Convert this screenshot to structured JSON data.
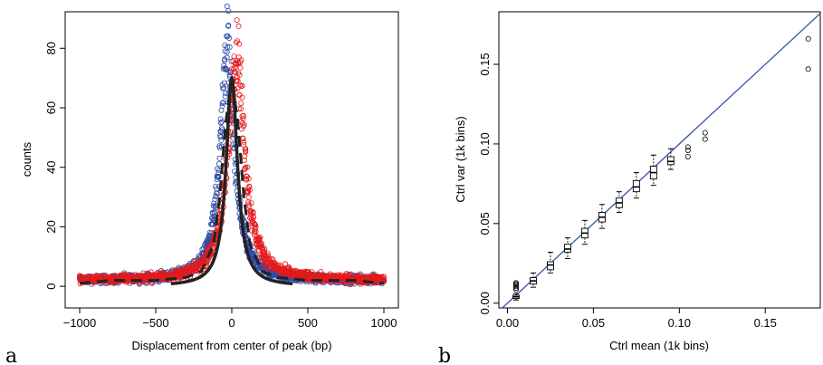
{
  "colors": {
    "blue": "#2b4aa8",
    "red": "#e41a1c",
    "black": "#222222",
    "line": "#3355aa"
  },
  "chart_data": [
    {
      "type": "scatter",
      "panel_label": "a",
      "xlabel": "Displacement from center of peak (bp)",
      "ylabel": "counts",
      "xlim": [
        -1000,
        1000
      ],
      "ylim": [
        -3,
        88
      ],
      "xticks": [
        {
          "v": -1000,
          "label": "−1000"
        },
        {
          "v": -500,
          "label": "−500"
        },
        {
          "v": 0,
          "label": "0"
        },
        {
          "v": 500,
          "label": "500"
        },
        {
          "v": 1000,
          "label": "1000"
        }
      ],
      "yticks": [
        0,
        20,
        40,
        60,
        80
      ],
      "grid": false,
      "series": [
        {
          "color": "blue",
          "marker": "open-circle",
          "center": -30,
          "peak": 80,
          "halfwidth": 55,
          "baseline": 2
        },
        {
          "color": "red",
          "marker": "open-circle",
          "center": 30,
          "peak": 78,
          "halfwidth": 65,
          "baseline": 2
        }
      ],
      "fits": [
        {
          "style": "solid",
          "color": "black",
          "center": 0,
          "peak": 70,
          "halfwidth": 45,
          "baseline": 0
        },
        {
          "style": "dashed",
          "color": "black",
          "points": [
            [
              -1000,
              1
            ],
            [
              -800,
              2
            ],
            [
              -500,
              2
            ],
            [
              -300,
              3
            ],
            [
              -200,
              5
            ],
            [
              -120,
              14
            ],
            [
              -80,
              30
            ],
            [
              -40,
              55
            ],
            [
              0,
              70
            ],
            [
              40,
              55
            ],
            [
              80,
              30
            ],
            [
              120,
              14
            ],
            [
              200,
              5
            ],
            [
              300,
              3
            ],
            [
              500,
              2
            ],
            [
              800,
              2
            ],
            [
              1000,
              1
            ]
          ]
        }
      ]
    },
    {
      "type": "boxplot",
      "panel_label": "b",
      "xlabel": "Ctrl mean (1k bins)",
      "ylabel": "Ctrl var (1k bins)",
      "xlim": [
        -0.005,
        0.182
      ],
      "ylim": [
        -0.003,
        0.183
      ],
      "xticks": [
        {
          "v": 0,
          "label": "0.00"
        },
        {
          "v": 0.05,
          "label": "0.05"
        },
        {
          "v": 0.1,
          "label": "0.10"
        },
        {
          "v": 0.15,
          "label": "0.15"
        }
      ],
      "yticks": [
        {
          "v": 0,
          "label": "0.00"
        },
        {
          "v": 0.05,
          "label": "0.05"
        },
        {
          "v": 0.1,
          "label": "0.10"
        },
        {
          "v": 0.15,
          "label": "0.15"
        }
      ],
      "grid": false,
      "reference_line": {
        "intercept": 0,
        "slope": 1.0,
        "color": "line"
      },
      "boxes": [
        {
          "x": 0.005,
          "min": 0.002,
          "q1": 0.003,
          "median": 0.004,
          "q3": 0.005,
          "max": 0.006
        },
        {
          "x": 0.015,
          "min": 0.01,
          "q1": 0.012,
          "median": 0.014,
          "q3": 0.016,
          "max": 0.019
        },
        {
          "x": 0.025,
          "min": 0.019,
          "q1": 0.021,
          "median": 0.024,
          "q3": 0.026,
          "max": 0.032
        },
        {
          "x": 0.035,
          "min": 0.028,
          "q1": 0.032,
          "median": 0.034,
          "q3": 0.037,
          "max": 0.041
        },
        {
          "x": 0.045,
          "min": 0.037,
          "q1": 0.041,
          "median": 0.044,
          "q3": 0.047,
          "max": 0.052
        },
        {
          "x": 0.055,
          "min": 0.047,
          "q1": 0.051,
          "median": 0.054,
          "q3": 0.057,
          "max": 0.062
        },
        {
          "x": 0.065,
          "min": 0.057,
          "q1": 0.06,
          "median": 0.063,
          "q3": 0.066,
          "max": 0.07
        },
        {
          "x": 0.075,
          "min": 0.066,
          "q1": 0.07,
          "median": 0.073,
          "q3": 0.077,
          "max": 0.082
        },
        {
          "x": 0.085,
          "min": 0.074,
          "q1": 0.078,
          "median": 0.082,
          "q3": 0.086,
          "max": 0.093
        },
        {
          "x": 0.095,
          "min": 0.084,
          "q1": 0.087,
          "median": 0.089,
          "q3": 0.092,
          "max": 0.097
        }
      ],
      "outliers": [
        [
          0.005,
          0.0085
        ],
        [
          0.005,
          0.0095
        ],
        [
          0.005,
          0.0105
        ],
        [
          0.005,
          0.0115
        ],
        [
          0.005,
          0.012
        ],
        [
          0.005,
          0.0128
        ],
        [
          0.105,
          0.092
        ],
        [
          0.105,
          0.096
        ],
        [
          0.105,
          0.098
        ],
        [
          0.115,
          0.103
        ],
        [
          0.115,
          0.107
        ],
        [
          0.175,
          0.147
        ],
        [
          0.175,
          0.166
        ]
      ]
    }
  ]
}
